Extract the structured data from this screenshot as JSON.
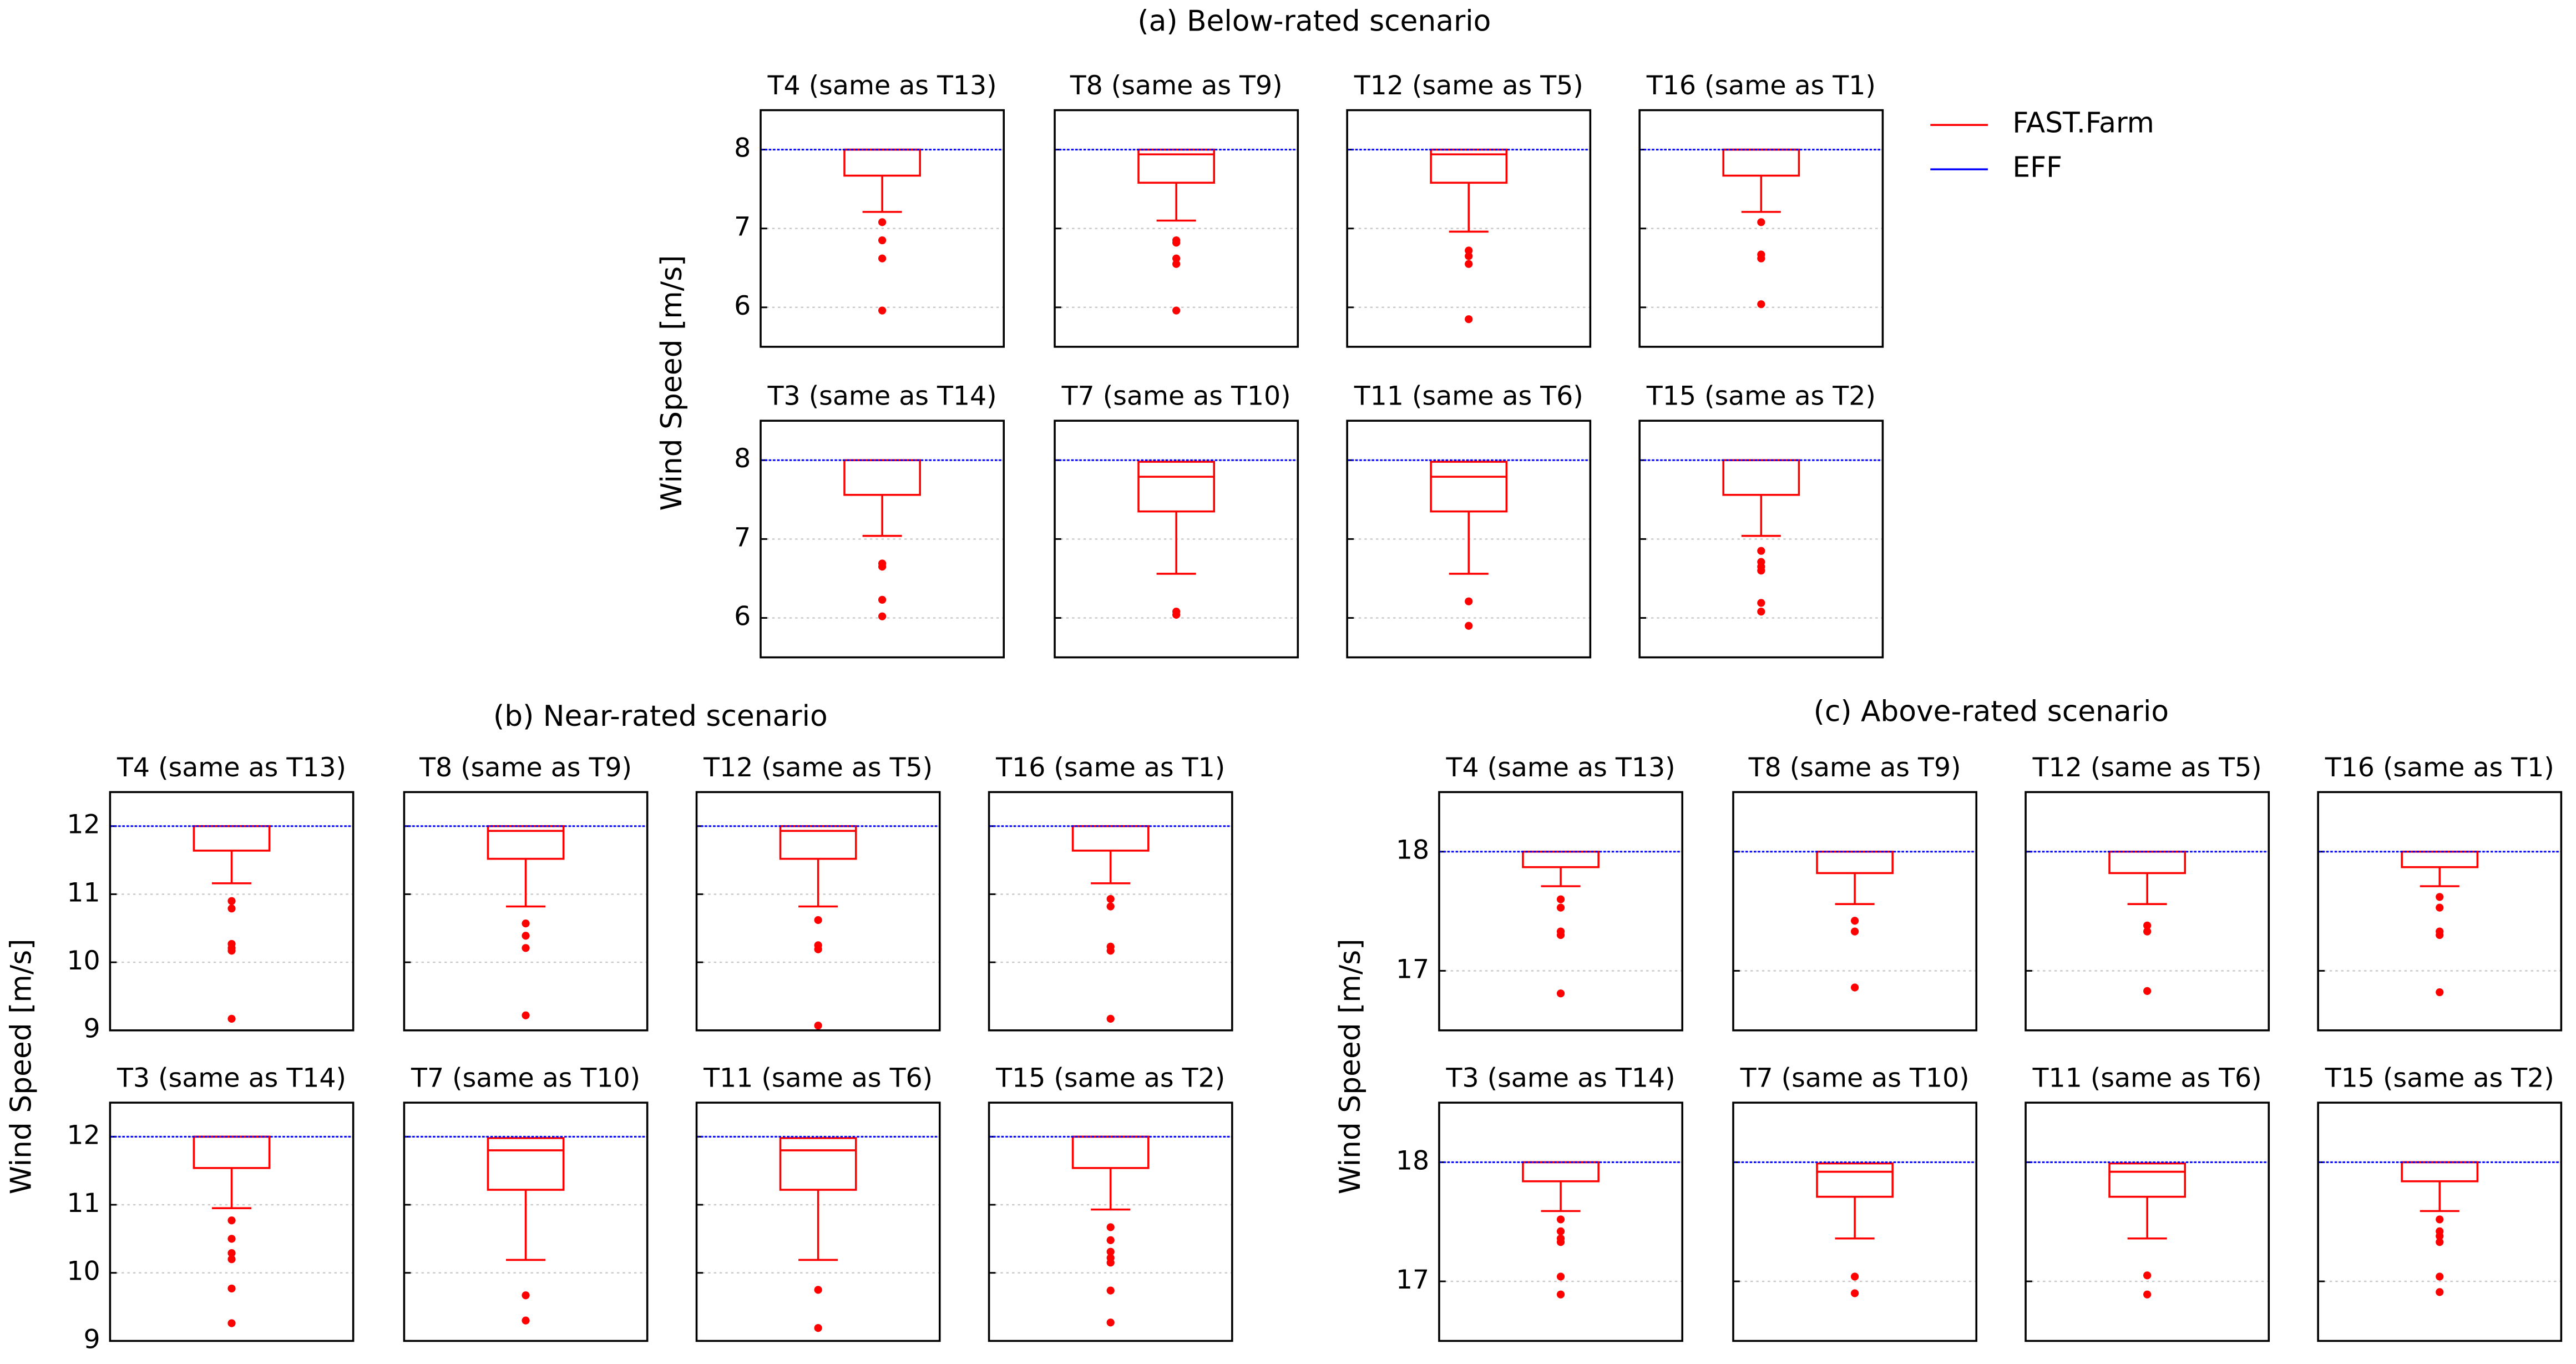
{
  "chart_data": [
    {
      "type": "box",
      "title": "(a) Below-rated scenario",
      "ylabel": "Wind Speed [m/s]",
      "ylim": [
        5.5,
        8.5
      ],
      "yticks": [
        6,
        7,
        8
      ],
      "grid": true,
      "eff": 8,
      "box_color": "#ff0000",
      "eff_color": "#0000ff",
      "legend": [
        "FAST.Farm",
        "EFF"
      ],
      "subplots": [
        {
          "title": "T4 (same as T13)",
          "whislo": 7.21,
          "q1": 7.67,
          "median": 8.0,
          "q3": 8.0,
          "fliers": [
            7.08,
            6.85,
            6.62,
            5.96
          ]
        },
        {
          "title": "T8 (same as T9)",
          "whislo": 7.1,
          "q1": 7.58,
          "median": 7.94,
          "q3": 8.0,
          "fliers": [
            6.85,
            6.82,
            6.62,
            6.55,
            5.96
          ]
        },
        {
          "title": "T12 (same as T5)",
          "whislo": 6.96,
          "q1": 7.58,
          "median": 7.94,
          "q3": 8.0,
          "fliers": [
            6.72,
            6.65,
            6.55,
            5.85
          ]
        },
        {
          "title": "T16 (same as T1)",
          "whislo": 7.21,
          "q1": 7.67,
          "median": 8.0,
          "q3": 8.0,
          "fliers": [
            7.08,
            6.67,
            6.62,
            6.04
          ]
        },
        {
          "title": "T3 (same as T14)",
          "whislo": 7.04,
          "q1": 7.56,
          "median": 8.0,
          "q3": 8.0,
          "fliers": [
            6.69,
            6.65,
            6.23,
            6.02
          ]
        },
        {
          "title": "T7 (same as T10)",
          "whislo": 6.56,
          "q1": 7.35,
          "median": 7.79,
          "q3": 7.98,
          "fliers": [
            6.08,
            6.04
          ]
        },
        {
          "title": "T11 (same as T6)",
          "whislo": 6.56,
          "q1": 7.35,
          "median": 7.79,
          "q3": 7.98,
          "fliers": [
            6.21,
            5.9
          ]
        },
        {
          "title": "T15 (same as T2)",
          "whislo": 7.04,
          "q1": 7.56,
          "median": 8.0,
          "q3": 8.0,
          "fliers": [
            6.85,
            6.71,
            6.65,
            6.6,
            6.19,
            6.08
          ]
        }
      ]
    },
    {
      "type": "box",
      "title": "(b) Near-rated scenario",
      "ylabel": "Wind Speed [m/s]",
      "ylim": [
        9,
        12.5
      ],
      "yticks": [
        9,
        10,
        11,
        12
      ],
      "grid": true,
      "eff": 12,
      "box_color": "#ff0000",
      "eff_color": "#0000ff",
      "subplots": [
        {
          "title": "T4 (same as T13)",
          "whislo": 11.16,
          "q1": 11.64,
          "median": 12.0,
          "q3": 12.0,
          "fliers": [
            10.9,
            10.79,
            10.27,
            10.21,
            10.17,
            9.17
          ]
        },
        {
          "title": "T8 (same as T9)",
          "whislo": 10.82,
          "q1": 11.52,
          "median": 11.93,
          "q3": 12.0,
          "fliers": [
            10.57,
            10.39,
            10.21,
            9.22
          ]
        },
        {
          "title": "T12 (same as T5)",
          "whislo": 10.82,
          "q1": 11.52,
          "median": 11.93,
          "q3": 12.0,
          "fliers": [
            10.62,
            10.25,
            10.19,
            9.07
          ]
        },
        {
          "title": "T16 (same as T1)",
          "whislo": 11.16,
          "q1": 11.64,
          "median": 12.0,
          "q3": 12.0,
          "fliers": [
            10.93,
            10.82,
            10.23,
            10.17,
            9.17
          ]
        },
        {
          "title": "T3 (same as T14)",
          "whislo": 10.95,
          "q1": 11.54,
          "median": 12.0,
          "q3": 12.0,
          "fliers": [
            10.77,
            10.5,
            10.29,
            10.2,
            9.77,
            9.26
          ]
        },
        {
          "title": "T7 (same as T10)",
          "whislo": 10.19,
          "q1": 11.22,
          "median": 11.8,
          "q3": 11.98,
          "fliers": [
            9.67,
            9.3
          ]
        },
        {
          "title": "T11 (same as T6)",
          "whislo": 10.19,
          "q1": 11.22,
          "median": 11.8,
          "q3": 11.98,
          "fliers": [
            9.75,
            9.19
          ]
        },
        {
          "title": "T15 (same as T2)",
          "whislo": 10.93,
          "q1": 11.54,
          "median": 12.0,
          "q3": 12.0,
          "fliers": [
            10.67,
            10.48,
            10.31,
            10.22,
            10.15,
            9.74,
            9.27
          ]
        }
      ]
    },
    {
      "type": "box",
      "title": "(c) Above-rated scenario",
      "ylabel": "Wind Speed [m/s]",
      "ylim": [
        16.5,
        18.5
      ],
      "yticks": [
        17,
        18
      ],
      "grid": true,
      "eff": 18,
      "box_color": "#ff0000",
      "eff_color": "#0000ff",
      "subplots": [
        {
          "title": "T4 (same as T13)",
          "whislo": 17.71,
          "q1": 17.87,
          "median": 18.0,
          "q3": 18.0,
          "fliers": [
            17.6,
            17.53,
            17.33,
            17.3,
            16.81
          ]
        },
        {
          "title": "T8 (same as T9)",
          "whislo": 17.56,
          "q1": 17.82,
          "median": 18.0,
          "q3": 18.0,
          "fliers": [
            17.42,
            17.33,
            16.86
          ]
        },
        {
          "title": "T12 (same as T5)",
          "whislo": 17.56,
          "q1": 17.82,
          "median": 18.0,
          "q3": 18.0,
          "fliers": [
            17.38,
            17.33,
            16.83
          ]
        },
        {
          "title": "T16 (same as T1)",
          "whislo": 17.71,
          "q1": 17.87,
          "median": 18.0,
          "q3": 18.0,
          "fliers": [
            17.62,
            17.53,
            17.33,
            17.3,
            16.82
          ]
        },
        {
          "title": "T3 (same as T14)",
          "whislo": 17.59,
          "q1": 17.84,
          "median": 18.0,
          "q3": 18.0,
          "fliers": [
            17.52,
            17.42,
            17.36,
            17.33,
            17.04,
            16.89
          ]
        },
        {
          "title": "T7 (same as T10)",
          "whislo": 17.36,
          "q1": 17.71,
          "median": 17.92,
          "q3": 17.99,
          "fliers": [
            17.04,
            16.9
          ]
        },
        {
          "title": "T11 (same as T6)",
          "whislo": 17.36,
          "q1": 17.71,
          "median": 17.92,
          "q3": 17.99,
          "fliers": [
            17.05,
            16.89
          ]
        },
        {
          "title": "T15 (same as T2)",
          "whislo": 17.59,
          "q1": 17.84,
          "median": 18.0,
          "q3": 18.0,
          "fliers": [
            17.52,
            17.42,
            17.38,
            17.33,
            17.04,
            16.91
          ]
        }
      ]
    }
  ]
}
